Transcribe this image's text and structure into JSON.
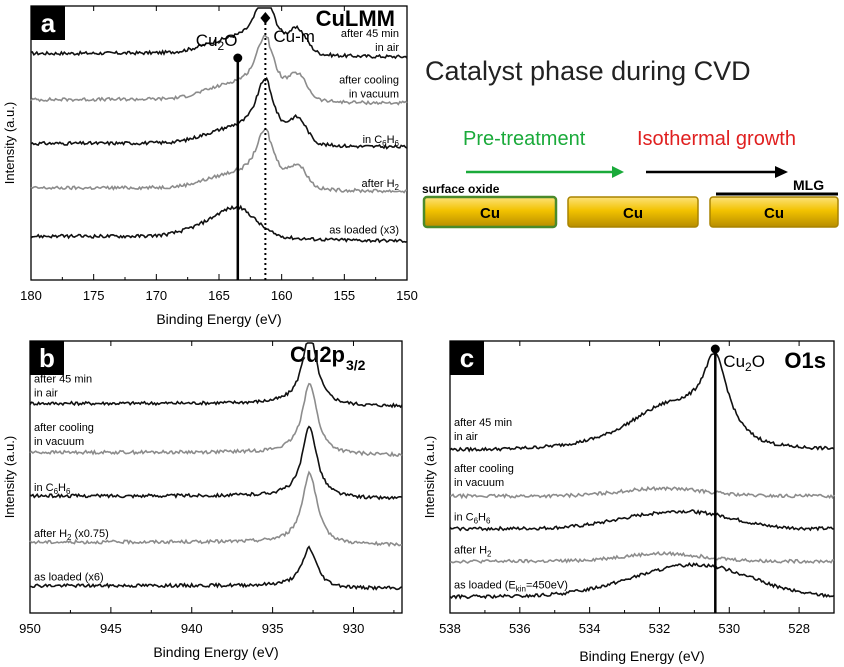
{
  "chart_data": [
    {
      "panel": "a",
      "type": "line",
      "title": "CuLMM",
      "xlabel": "Binding Energy (eV)",
      "ylabel": "Intensity (a.u.)",
      "xlim": [
        180,
        150
      ],
      "xticks": [
        "180",
        "175",
        "170",
        "165",
        "160",
        "155",
        "150"
      ],
      "markers": [
        {
          "label_main": "Cu",
          "label_sub": "2",
          "label_tail": "O",
          "x": 163.5,
          "style": "solid"
        },
        {
          "label_main": "Cu-m",
          "label_sub": "",
          "label_tail": "",
          "x": 161.3,
          "style": "dotted"
        }
      ],
      "series": [
        {
          "label_main": "after 45 min",
          "label_line2": "in air",
          "label_sub": "",
          "color": "#111111",
          "offset": 0.8,
          "scale": 1.0
        },
        {
          "label_main": "after cooling",
          "label_line2": "in vacuum",
          "label_sub": "",
          "color": "#8c8c8c",
          "offset": 0.63,
          "scale": 1.05
        },
        {
          "label_main": "in C",
          "label_sub": "6",
          "label_tail": "H",
          "label_sub2": "6",
          "label_line2": "",
          "color": "#111111",
          "offset": 0.47,
          "scale": 1.05
        },
        {
          "label_main": "after H",
          "label_sub": "2",
          "label_line2": "",
          "color": "#8c8c8c",
          "offset": 0.31,
          "scale": 0.95
        },
        {
          "label_main": "as loaded (x3)",
          "label_sub": "",
          "label_line2": "",
          "color": "#111111",
          "offset": 0.14,
          "scale": 0.45
        }
      ]
    },
    {
      "panel": "b",
      "type": "line",
      "title_main": "Cu2p",
      "title_sub": "3/2",
      "xlabel": "Binding Energy (eV)",
      "ylabel": "Intensity (a.u.)",
      "xlim": [
        950,
        927
      ],
      "xticks": [
        "950",
        "945",
        "940",
        "935",
        "930"
      ],
      "peak": 932.7,
      "series": [
        {
          "label_main": "after 45 min",
          "label_line2": "in air",
          "label_sub": "",
          "color": "#111111",
          "offset": 0.76
        },
        {
          "label_main": "after cooling",
          "label_line2": "in vacuum",
          "label_sub": "",
          "color": "#8c8c8c",
          "offset": 0.58
        },
        {
          "label_main": "in C",
          "label_sub": "6",
          "label_tail": "H",
          "label_sub2": "6",
          "label_line2": "",
          "color": "#111111",
          "offset": 0.42
        },
        {
          "label_main": "after H",
          "label_sub": "2",
          "label_tail": " (x0.75)",
          "label_line2": "",
          "color": "#8c8c8c",
          "offset": 0.25
        },
        {
          "label_main": "as loaded (x6)",
          "label_sub": "",
          "label_line2": "",
          "color": "#111111",
          "offset": 0.09
        }
      ]
    },
    {
      "panel": "c",
      "type": "line",
      "title": "O1s",
      "xlabel": "Binding Energy (eV)",
      "ylabel": "Intensity (a.u.)",
      "xlim": [
        538,
        527
      ],
      "xticks": [
        "538",
        "536",
        "534",
        "532",
        "530",
        "528"
      ],
      "markers": [
        {
          "label_main": "Cu",
          "label_sub": "2",
          "label_tail": "O",
          "x": 530.4,
          "style": "solid"
        }
      ],
      "series": [
        {
          "label_main": "after 45 min",
          "label_line2": "in air",
          "label_sub": "",
          "color": "#111111",
          "offset": 0.6
        },
        {
          "label_main": "after cooling",
          "label_line2": "in vacuum",
          "label_sub": "",
          "color": "#8c8c8c",
          "offset": 0.43
        },
        {
          "label_main": "in C",
          "label_sub": "6",
          "label_tail": "H",
          "label_sub2": "6",
          "label_line2": "",
          "color": "#111111",
          "offset": 0.31
        },
        {
          "label_main": "after H",
          "label_sub": "2",
          "label_line2": "",
          "color": "#8c8c8c",
          "offset": 0.19
        },
        {
          "label_main": "as loaded (E",
          "label_sub": "kin",
          "label_tail": "=450eV)",
          "label_line2": "",
          "color": "#111111",
          "offset": 0.06
        }
      ]
    }
  ],
  "schematic": {
    "title": "Catalyst phase during CVD",
    "pretreatment": "Pre-treatment",
    "pretreatment_color": "#1aaa3a",
    "isothermal": "Isothermal growth",
    "isothermal_color": "#e02020",
    "surface_oxide": "surface oxide",
    "cu_label": "Cu",
    "mlg": "MLG",
    "cu_color": "#f2c200"
  },
  "panel_letters": [
    "a",
    "b",
    "c"
  ]
}
